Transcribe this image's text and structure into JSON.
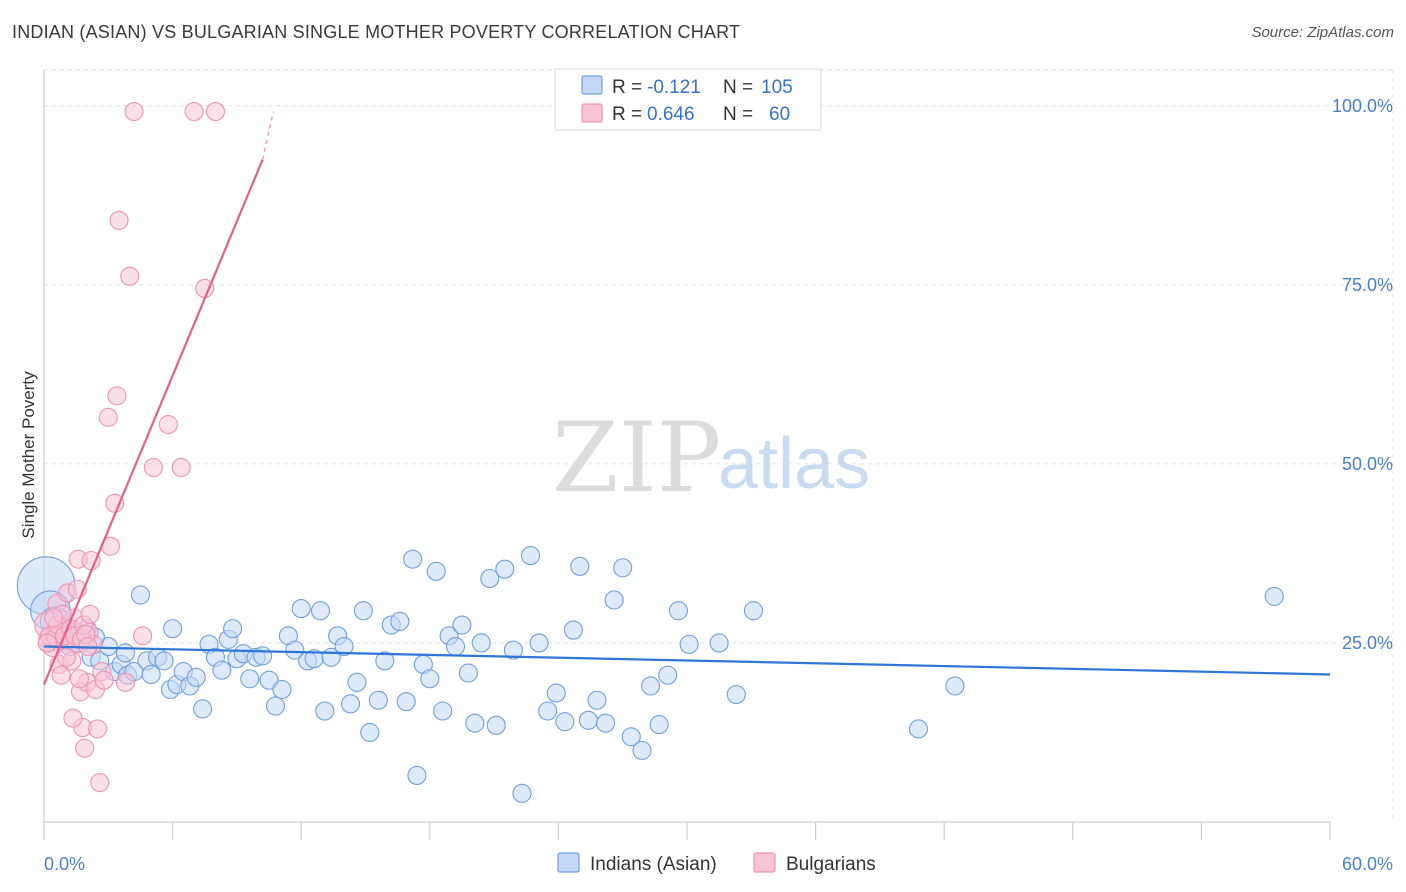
{
  "title": "INDIAN (ASIAN) VS BULGARIAN SINGLE MOTHER POVERTY CORRELATION CHART",
  "source": "Source: ZipAtlas.com",
  "watermark": {
    "zip": "ZIP",
    "atlas": "atlas"
  },
  "colors": {
    "blue": "#4a86d8",
    "blue_fill": "#c3d9f5",
    "pink": "#e8759d",
    "pink_fill": "#f7c5d6",
    "axis_text": "#4a7fc8"
  },
  "chart_data": {
    "type": "scatter",
    "title": "INDIAN (ASIAN) VS BULGARIAN SINGLE MOTHER POVERTY CORRELATION CHART",
    "xlabel": "",
    "ylabel": "Single Mother Poverty",
    "xlim": [
      0,
      60
    ],
    "ylim": [
      0,
      105
    ],
    "x_tick_labels": [
      "0.0%",
      "60.0%"
    ],
    "y_tick_labels": [
      "25.0%",
      "50.0%",
      "75.0%",
      "100.0%"
    ],
    "y_ticks": [
      25,
      50,
      75,
      100
    ],
    "legend": [
      {
        "name": "Indians (Asian)",
        "R_label": "R = ",
        "R": "-0.121",
        "N_label": "N = ",
        "N": "105"
      },
      {
        "name": "Bulgarians",
        "R_label": "R = ",
        "R": "0.646",
        "N_label": "N = ",
        "N": "60"
      }
    ],
    "series": [
      {
        "name": "Indians (Asian)",
        "trend": {
          "x": [
            0,
            60
          ],
          "y": [
            24.5,
            20.6
          ]
        },
        "points": [
          [
            0.1,
            33.0,
            3.2
          ],
          [
            0.3,
            29.5,
            2.2
          ],
          [
            0.5,
            28.0,
            1.6
          ],
          [
            0.8,
            26.5,
            1.2
          ],
          [
            1.0,
            25.2,
            1.0
          ],
          [
            1.2,
            24.5,
            1.0
          ],
          [
            1.5,
            25.0,
            1.0
          ],
          [
            2.0,
            27.0,
            1.0
          ],
          [
            2.2,
            23.0,
            1.0
          ],
          [
            2.6,
            22.5,
            1.0
          ],
          [
            3.0,
            24.5,
            1.0
          ],
          [
            3.3,
            21.0,
            1.0
          ],
          [
            3.6,
            22.0,
            1.0
          ],
          [
            3.9,
            20.5,
            1.0
          ],
          [
            4.2,
            21.0,
            1.0
          ],
          [
            4.5,
            31.7,
            1.0
          ],
          [
            4.8,
            22.5,
            1.0
          ],
          [
            5.0,
            20.6,
            1.0
          ],
          [
            5.3,
            23.0,
            1.0
          ],
          [
            5.6,
            22.5,
            1.0
          ],
          [
            5.9,
            18.5,
            1.0
          ],
          [
            6.2,
            19.2,
            1.0
          ],
          [
            6.5,
            21.0,
            1.0
          ],
          [
            6.8,
            19.0,
            1.0
          ],
          [
            7.1,
            20.2,
            1.0
          ],
          [
            7.4,
            15.8,
            1.0
          ],
          [
            7.7,
            24.8,
            1.0
          ],
          [
            8.0,
            23.0,
            1.0
          ],
          [
            8.3,
            21.2,
            1.0
          ],
          [
            8.6,
            25.5,
            1.0
          ],
          [
            9.0,
            22.8,
            1.0
          ],
          [
            9.3,
            23.5,
            1.0
          ],
          [
            9.6,
            20.0,
            1.0
          ],
          [
            9.9,
            23.0,
            1.0
          ],
          [
            10.2,
            23.2,
            1.0
          ],
          [
            10.5,
            19.8,
            1.0
          ],
          [
            10.8,
            16.2,
            1.0
          ],
          [
            11.1,
            18.5,
            1.0
          ],
          [
            11.4,
            26.0,
            1.0
          ],
          [
            11.7,
            24.0,
            1.0
          ],
          [
            12.0,
            29.8,
            1.0
          ],
          [
            12.3,
            22.5,
            1.0
          ],
          [
            12.6,
            22.8,
            1.0
          ],
          [
            12.9,
            29.5,
            1.0
          ],
          [
            13.1,
            15.5,
            1.0
          ],
          [
            13.4,
            23.0,
            1.0
          ],
          [
            13.7,
            26.0,
            1.0
          ],
          [
            14.0,
            24.5,
            1.0
          ],
          [
            14.3,
            16.5,
            1.0
          ],
          [
            14.6,
            19.5,
            1.0
          ],
          [
            14.9,
            29.5,
            1.0
          ],
          [
            15.2,
            12.5,
            1.0
          ],
          [
            15.6,
            17.0,
            1.0
          ],
          [
            15.9,
            22.5,
            1.0
          ],
          [
            16.2,
            27.5,
            1.0
          ],
          [
            16.6,
            28.0,
            1.0
          ],
          [
            16.9,
            16.8,
            1.0
          ],
          [
            17.2,
            36.7,
            1.0
          ],
          [
            17.4,
            6.5,
            1.0
          ],
          [
            17.7,
            22.0,
            1.0
          ],
          [
            18.0,
            20.0,
            1.0
          ],
          [
            18.3,
            35.0,
            1.0
          ],
          [
            18.6,
            15.5,
            1.0
          ],
          [
            18.9,
            26.0,
            1.0
          ],
          [
            19.2,
            24.5,
            1.0
          ],
          [
            19.5,
            27.5,
            1.0
          ],
          [
            19.8,
            20.8,
            1.0
          ],
          [
            20.1,
            13.8,
            1.0
          ],
          [
            20.4,
            25.0,
            1.0
          ],
          [
            20.8,
            34.0,
            1.0
          ],
          [
            21.1,
            13.5,
            1.0
          ],
          [
            21.5,
            35.3,
            1.0
          ],
          [
            21.9,
            24.0,
            1.0
          ],
          [
            22.3,
            4.0,
            1.0
          ],
          [
            22.7,
            37.2,
            1.0
          ],
          [
            23.1,
            25.0,
            1.0
          ],
          [
            23.5,
            15.5,
            1.0
          ],
          [
            23.9,
            18.0,
            1.0
          ],
          [
            24.3,
            14.0,
            1.0
          ],
          [
            24.7,
            26.8,
            1.0
          ],
          [
            25.0,
            35.7,
            1.0
          ],
          [
            25.4,
            14.2,
            1.0
          ],
          [
            25.8,
            17.0,
            1.0
          ],
          [
            26.2,
            13.8,
            1.0
          ],
          [
            26.6,
            31.0,
            1.0
          ],
          [
            27.0,
            35.5,
            1.0
          ],
          [
            27.4,
            11.9,
            1.0
          ],
          [
            27.9,
            10.0,
            1.0
          ],
          [
            28.3,
            19.0,
            1.0
          ],
          [
            28.7,
            13.6,
            1.0
          ],
          [
            29.1,
            20.5,
            1.0
          ],
          [
            29.6,
            29.5,
            1.0
          ],
          [
            30.1,
            24.8,
            1.0
          ],
          [
            31.5,
            25.0,
            1.0
          ],
          [
            32.3,
            17.8,
            1.0
          ],
          [
            33.1,
            29.5,
            1.0
          ],
          [
            40.8,
            13.0,
            1.0
          ],
          [
            42.5,
            19.0,
            1.0
          ],
          [
            57.4,
            31.5,
            1.0
          ],
          [
            0.9,
            27.2,
            1.0
          ],
          [
            1.8,
            26.2,
            1.0
          ],
          [
            2.4,
            25.8,
            1.0
          ],
          [
            3.8,
            23.6,
            1.0
          ],
          [
            6.0,
            27.0,
            1.0
          ],
          [
            8.8,
            27.0,
            1.0
          ]
        ]
      },
      {
        "name": "Bulgarians",
        "trend": {
          "x": [
            0,
            10.2
          ],
          "y": [
            19.2,
            92.5
          ]
        },
        "trend_dashed": {
          "x": [
            10.2,
            10.7
          ],
          "y": [
            92.5,
            99.2
          ]
        },
        "points": [
          [
            0.2,
            27.5,
            1.5
          ],
          [
            0.3,
            25.5,
            1.3
          ],
          [
            0.4,
            24.5,
            1.1
          ],
          [
            0.5,
            26.2,
            1.0
          ],
          [
            0.6,
            30.5,
            1.0
          ],
          [
            0.7,
            22.0,
            1.0
          ],
          [
            0.8,
            20.5,
            1.0
          ],
          [
            0.9,
            27.0,
            1.0
          ],
          [
            1.0,
            25.5,
            1.0
          ],
          [
            1.1,
            32.0,
            1.0
          ],
          [
            1.2,
            26.8,
            1.0
          ],
          [
            1.3,
            22.5,
            1.0
          ],
          [
            1.4,
            28.5,
            1.0
          ],
          [
            1.5,
            24.8,
            1.0
          ],
          [
            1.6,
            36.7,
            1.0
          ],
          [
            1.7,
            18.2,
            1.0
          ],
          [
            1.8,
            13.2,
            1.0
          ],
          [
            1.9,
            10.3,
            1.0
          ],
          [
            2.0,
            19.5,
            1.0
          ],
          [
            2.1,
            26.5,
            1.0
          ],
          [
            2.2,
            36.5,
            1.0
          ],
          [
            2.3,
            24.8,
            1.0
          ],
          [
            2.4,
            18.5,
            1.0
          ],
          [
            2.5,
            13.0,
            1.0
          ],
          [
            2.6,
            5.5,
            1.0
          ],
          [
            2.7,
            21.0,
            1.0
          ],
          [
            2.8,
            19.8,
            1.0
          ],
          [
            3.0,
            56.5,
            1.0
          ],
          [
            3.1,
            38.5,
            1.0
          ],
          [
            3.3,
            44.5,
            1.0
          ],
          [
            3.4,
            59.5,
            1.0
          ],
          [
            3.5,
            84.0,
            1.0
          ],
          [
            3.8,
            19.5,
            1.0
          ],
          [
            4.0,
            76.2,
            1.0
          ],
          [
            4.2,
            99.2,
            1.0
          ],
          [
            4.6,
            26.0,
            1.0
          ],
          [
            5.1,
            49.5,
            1.0
          ],
          [
            5.8,
            55.5,
            1.0
          ],
          [
            6.4,
            49.5,
            1.0
          ],
          [
            7.0,
            99.2,
            1.0
          ],
          [
            7.5,
            74.5,
            1.0
          ],
          [
            8.0,
            99.2,
            1.0
          ],
          [
            0.25,
            26.0,
            1.0
          ],
          [
            0.55,
            25.8,
            1.0
          ],
          [
            0.65,
            27.5,
            1.0
          ],
          [
            0.85,
            29.0,
            1.0
          ],
          [
            0.95,
            26.0,
            1.0
          ],
          [
            1.05,
            23.0,
            1.0
          ],
          [
            1.25,
            27.0,
            1.0
          ],
          [
            1.35,
            14.5,
            1.0
          ],
          [
            1.45,
            26.0,
            1.0
          ],
          [
            1.55,
            32.5,
            1.0
          ],
          [
            1.65,
            20.0,
            1.0
          ],
          [
            1.75,
            25.5,
            1.0
          ],
          [
            1.85,
            27.5,
            1.0
          ],
          [
            1.95,
            26.2,
            1.0
          ],
          [
            2.05,
            24.5,
            1.0
          ],
          [
            2.15,
            29.0,
            1.0
          ],
          [
            0.45,
            28.5,
            1.0
          ],
          [
            0.15,
            25.0,
            1.0
          ]
        ]
      }
    ]
  }
}
